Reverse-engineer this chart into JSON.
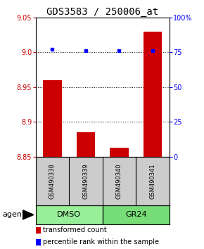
{
  "title": "GDS3583 / 250006_at",
  "categories": [
    "GSM490338",
    "GSM490339",
    "GSM490340",
    "GSM490341"
  ],
  "bar_values": [
    8.96,
    8.885,
    8.863,
    9.03
  ],
  "percentile_values": [
    77,
    76,
    76,
    76
  ],
  "ylim_left": [
    8.85,
    9.05
  ],
  "ylim_right": [
    0,
    100
  ],
  "yticks_left": [
    8.85,
    8.9,
    8.95,
    9.0,
    9.05
  ],
  "yticks_right": [
    0,
    25,
    50,
    75,
    100
  ],
  "ytick_labels_right": [
    "0",
    "25",
    "50",
    "75",
    "100%"
  ],
  "bar_color": "#cc0000",
  "percentile_color": "#0000ff",
  "bar_bottom": 8.85,
  "groups": [
    {
      "label": "DMSO",
      "indices": [
        0,
        1
      ],
      "color": "#99ee99"
    },
    {
      "label": "GR24",
      "indices": [
        2,
        3
      ],
      "color": "#77dd77"
    }
  ],
  "agent_label": "agent",
  "legend_items": [
    {
      "color": "#cc0000",
      "label": "transformed count"
    },
    {
      "color": "#0000ff",
      "label": "percentile rank within the sample"
    }
  ],
  "title_fontsize": 10,
  "tick_fontsize": 7,
  "sample_fontsize": 6,
  "group_fontsize": 8,
  "legend_fontsize": 7
}
